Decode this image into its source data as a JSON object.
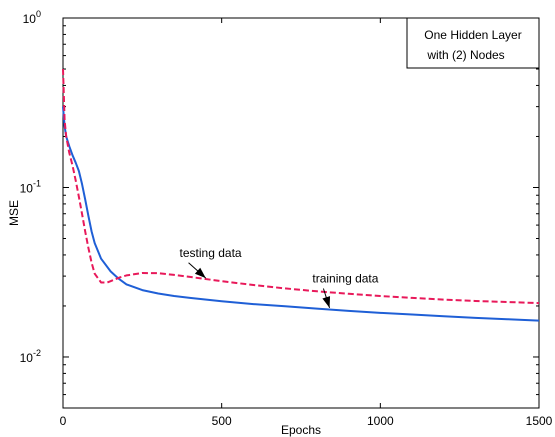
{
  "chart_data": {
    "type": "line",
    "title": "",
    "xlabel": "Epochs",
    "ylabel": "MSE",
    "x_scale": "linear",
    "y_scale": "log",
    "xlim": [
      0,
      1500
    ],
    "ylim": [
      0.005,
      1
    ],
    "x_ticks": [
      0,
      500,
      1000,
      1500
    ],
    "x_tick_labels": [
      "0",
      "500",
      "1000",
      "1500"
    ],
    "y_ticks": [
      0.01,
      0.1,
      1
    ],
    "y_tick_labels": [
      {
        "base": "10",
        "exp": "-2"
      },
      {
        "base": "10",
        "exp": "-1"
      },
      {
        "base": "10",
        "exp": "0"
      }
    ],
    "grid": false,
    "text_box": [
      "One Hidden Layer",
      "with (2) Nodes"
    ],
    "text_box_position": "top-right",
    "series": [
      {
        "name": "training data",
        "color": "#1f5fd6",
        "style": "solid",
        "x": [
          0,
          5,
          10,
          20,
          30,
          40,
          50,
          60,
          70,
          80,
          90,
          100,
          120,
          150,
          175,
          200,
          250,
          300,
          350,
          400,
          500,
          600,
          700,
          800,
          900,
          1000,
          1100,
          1200,
          1300,
          1400,
          1500
        ],
        "y": [
          0.3,
          0.23,
          0.2,
          0.175,
          0.155,
          0.14,
          0.125,
          0.105,
          0.085,
          0.068,
          0.055,
          0.047,
          0.038,
          0.032,
          0.029,
          0.0268,
          0.0248,
          0.0237,
          0.0229,
          0.0223,
          0.0213,
          0.0205,
          0.0199,
          0.0193,
          0.0187,
          0.0182,
          0.0178,
          0.0174,
          0.017,
          0.0167,
          0.0164
        ]
      },
      {
        "name": "testing data",
        "color": "#e8195a",
        "style": "dashed",
        "x": [
          0,
          5,
          10,
          20,
          30,
          40,
          50,
          60,
          70,
          80,
          90,
          100,
          120,
          140,
          160,
          180,
          200,
          250,
          300,
          350,
          400,
          500,
          600,
          700,
          800,
          900,
          1000,
          1100,
          1200,
          1300,
          1400,
          1500
        ],
        "y": [
          0.5,
          0.25,
          0.2,
          0.16,
          0.135,
          0.11,
          0.088,
          0.07,
          0.055,
          0.044,
          0.036,
          0.031,
          0.0275,
          0.0275,
          0.0285,
          0.0295,
          0.0303,
          0.0313,
          0.0312,
          0.0305,
          0.0297,
          0.028,
          0.0266,
          0.0254,
          0.0244,
          0.0236,
          0.0229,
          0.0223,
          0.0218,
          0.0214,
          0.0211,
          0.0208
        ]
      }
    ],
    "annotations": [
      {
        "text": "testing data",
        "text_x": 465,
        "text_y": 0.039,
        "arrow_to_x": 450,
        "arrow_to_y": 0.0292
      },
      {
        "text": "training data",
        "text_x": 890,
        "text_y": 0.0275,
        "arrow_to_x": 840,
        "arrow_to_y": 0.0195
      }
    ]
  }
}
